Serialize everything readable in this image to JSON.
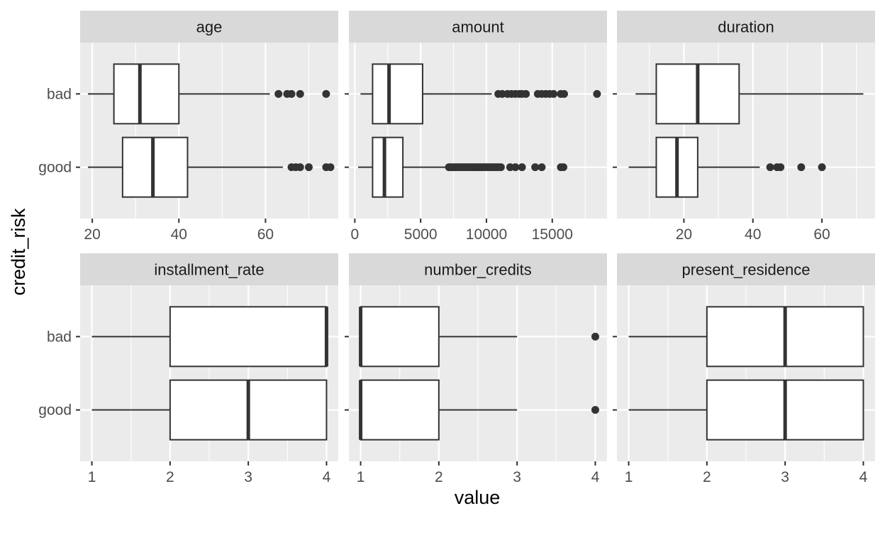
{
  "chart_data": {
    "type": "boxplot",
    "facets": "free_x",
    "xlabel": "value",
    "ylabel": "credit_risk",
    "categories": [
      "bad",
      "good"
    ],
    "colors": {
      "panel_bg": "#ebebeb",
      "strip_bg": "#d9d9d9",
      "grid": "#ffffff",
      "box_fill": "#ffffff",
      "line": "#333333"
    },
    "panels": [
      {
        "name": "age",
        "xlim": [
          17.2,
          76.8
        ],
        "xticks": [
          20,
          40,
          60
        ],
        "boxes": [
          {
            "group": "bad",
            "lower_whisker": 19,
            "q1": 25,
            "median": 31,
            "q3": 40,
            "upper_whisker": 61,
            "outliers": [
              63,
              65,
              66,
              68,
              74
            ]
          },
          {
            "group": "good",
            "lower_whisker": 19,
            "q1": 27,
            "median": 34,
            "q3": 42,
            "upper_whisker": 64,
            "outliers": [
              66,
              67,
              68,
              70,
              74,
              75
            ]
          }
        ]
      },
      {
        "name": "amount",
        "xlim": [
          -450,
          19160
        ],
        "xticks": [
          0,
          5000,
          10000,
          15000
        ],
        "boxes": [
          {
            "group": "bad",
            "lower_whisker": 430,
            "q1": 1350,
            "median": 2600,
            "q3": 5150,
            "upper_whisker": 10400,
            "outliers": [
              10900,
              11200,
              11600,
              11900,
              12200,
              12500,
              12700,
              13000,
              13900,
              14200,
              14500,
              14800,
              15100,
              15650,
              15900,
              18400
            ]
          },
          {
            "group": "good",
            "lower_whisker": 250,
            "q1": 1350,
            "median": 2250,
            "q3": 3650,
            "upper_whisker": 7100,
            "outliers": [
              7150,
              7300,
              7450,
              7600,
              7750,
              7900,
              8050,
              8200,
              8350,
              8500,
              8650,
              8800,
              8950,
              9100,
              9250,
              9400,
              9550,
              9700,
              9850,
              10000,
              10150,
              10300,
              10450,
              10600,
              10750,
              10900,
              11100,
              11800,
              12200,
              12700,
              13700,
              14200,
              15650,
              15850
            ]
          }
        ]
      },
      {
        "name": "duration",
        "xlim": [
          0.6,
          75.4
        ],
        "xticks": [
          20,
          40,
          60
        ],
        "boxes": [
          {
            "group": "bad",
            "lower_whisker": 6,
            "q1": 12,
            "median": 24,
            "q3": 36,
            "upper_whisker": 72,
            "outliers": []
          },
          {
            "group": "good",
            "lower_whisker": 4,
            "q1": 12,
            "median": 18,
            "q3": 24,
            "upper_whisker": 42,
            "outliers": [
              45,
              47,
              48,
              54,
              60
            ]
          }
        ]
      },
      {
        "name": "installment_rate",
        "xlim": [
          0.85,
          4.15
        ],
        "xticks": [
          1,
          2,
          3,
          4
        ],
        "boxes": [
          {
            "group": "bad",
            "lower_whisker": 1,
            "q1": 2,
            "median": 4,
            "q3": 4,
            "upper_whisker": 4,
            "outliers": []
          },
          {
            "group": "good",
            "lower_whisker": 1,
            "q1": 2,
            "median": 3,
            "q3": 4,
            "upper_whisker": 4,
            "outliers": []
          }
        ]
      },
      {
        "name": "number_credits",
        "xlim": [
          0.85,
          4.15
        ],
        "xticks": [
          1,
          2,
          3,
          4
        ],
        "boxes": [
          {
            "group": "bad",
            "lower_whisker": 1,
            "q1": 1,
            "median": 1,
            "q3": 2,
            "upper_whisker": 3,
            "outliers": [
              4
            ]
          },
          {
            "group": "good",
            "lower_whisker": 1,
            "q1": 1,
            "median": 1,
            "q3": 2,
            "upper_whisker": 3,
            "outliers": [
              4
            ]
          }
        ]
      },
      {
        "name": "present_residence",
        "xlim": [
          0.85,
          4.15
        ],
        "xticks": [
          1,
          2,
          3,
          4
        ],
        "boxes": [
          {
            "group": "bad",
            "lower_whisker": 1,
            "q1": 2,
            "median": 3,
            "q3": 4,
            "upper_whisker": 4,
            "outliers": []
          },
          {
            "group": "good",
            "lower_whisker": 1,
            "q1": 2,
            "median": 3,
            "q3": 4,
            "upper_whisker": 4,
            "outliers": []
          }
        ]
      }
    ]
  }
}
